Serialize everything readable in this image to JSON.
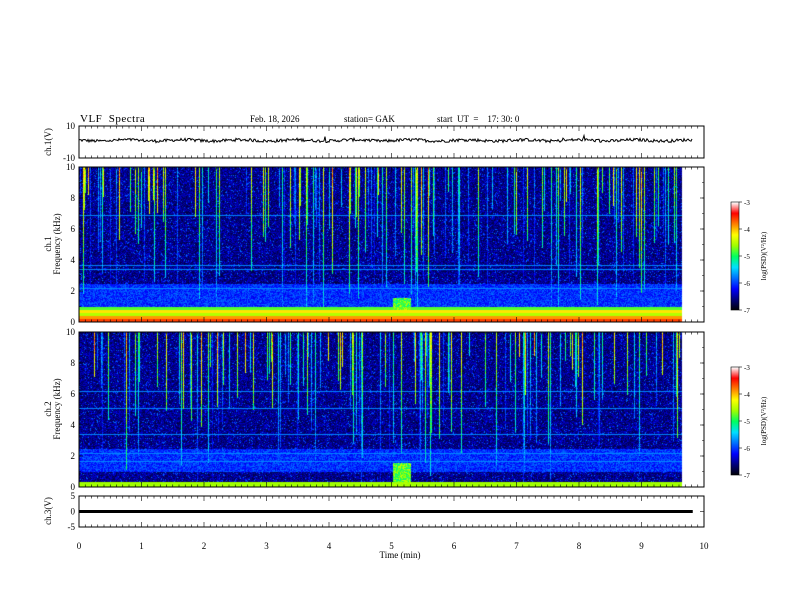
{
  "header": {
    "title": "VLF  Spectra",
    "date": "Feb. 18, 2026",
    "station": "station= GAK",
    "start": "start  UT  =    17: 30: 0"
  },
  "colors": {
    "axis": "#000000",
    "trace": "#000000",
    "background": "#ffffff",
    "colormap": [
      "#000000",
      "#00007a",
      "#0000ff",
      "#0070ff",
      "#00e0ff",
      "#00ff60",
      "#a0ff00",
      "#ffff00",
      "#ff8000",
      "#ff0000",
      "#ffffff"
    ]
  },
  "chart_data": [
    {
      "type": "line",
      "name": "ch1-waveform",
      "ylabel": "ch.1(V)",
      "ylim": [
        -10,
        10
      ],
      "yticks": [
        "10",
        "-10"
      ],
      "xlim": [
        0,
        10
      ],
      "data_extent_min": 9.82,
      "baseline_v": 1.0,
      "amplitude_v": 1.2
    },
    {
      "type": "heatmap",
      "name": "ch1-spectrogram",
      "ylabel": "ch.1\nFrequency  (kHz)",
      "ylabel_line1": "ch.1",
      "ylabel_line2": "Frequency  (kHz)",
      "ylim_khz": [
        0,
        10
      ],
      "yticks": [
        "10",
        "8",
        "6",
        "4",
        "2",
        "0"
      ],
      "xlim_min": [
        0,
        10
      ],
      "data_extent_min": 9.82,
      "colorbar": {
        "label": "log(PSD)(V²/Hz)",
        "range": [
          -7,
          -3
        ],
        "ticks": [
          "-3",
          "-4",
          "-5",
          "-6",
          "-7"
        ]
      },
      "strong_bands_khz": [
        0.15,
        0.3,
        0.5,
        0.7,
        0.9
      ],
      "tone_lines_khz": [
        2.2,
        3.4,
        3.7,
        6.9
      ],
      "sferic_activity": "high"
    },
    {
      "type": "heatmap",
      "name": "ch2-spectrogram",
      "ylabel": "ch.2\nFrequency  (kHz)",
      "ylabel_line1": "ch.2",
      "ylabel_line2": "Frequency  (kHz)",
      "ylim_khz": [
        0,
        10
      ],
      "yticks": [
        "10",
        "8",
        "6",
        "4",
        "2",
        "0"
      ],
      "xlim_min": [
        0,
        10
      ],
      "data_extent_min": 9.82,
      "colorbar": {
        "label": "log(PSD)(V²/Hz)",
        "range": [
          -7,
          -3
        ],
        "ticks": [
          "-3",
          "-4",
          "-5",
          "-6",
          "-7"
        ]
      },
      "strong_bands_khz": [
        0.1,
        0.25
      ],
      "tone_lines_khz": [
        1.7,
        2.2,
        3.4,
        5.1,
        6.2
      ],
      "sferic_activity": "high"
    },
    {
      "type": "line",
      "name": "ch3-waveform",
      "ylabel": "ch.3(V)",
      "ylim": [
        -5,
        5
      ],
      "yticks": [
        "5",
        "0",
        "-5"
      ],
      "xlim": [
        0,
        10
      ],
      "data_extent_min": 9.82,
      "baseline_v": 0.0
    }
  ],
  "xaxis": {
    "label": "Time  (min)",
    "ticks": [
      "0",
      "1",
      "2",
      "3",
      "4",
      "5",
      "6",
      "7",
      "8",
      "9",
      "10"
    ]
  }
}
